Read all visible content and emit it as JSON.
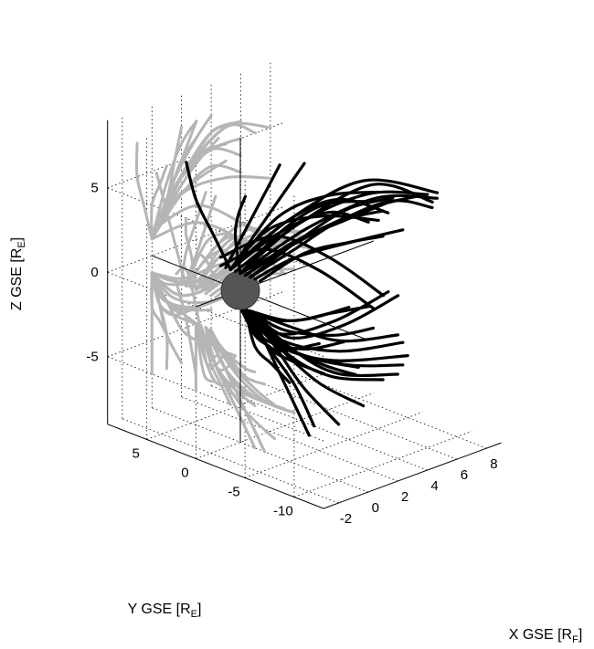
{
  "chart_data": {
    "type": "line3d",
    "title": "",
    "xlabel": "X GSE [R_F]",
    "ylabel": "Y GSE [R_E]",
    "zlabel": "Z GSE [R_E]",
    "xlabel_main": "X GSE [R",
    "xlabel_sub": "F",
    "ylabel_main": "Y GSE [R",
    "ylabel_sub": "E",
    "zlabel_main": "Z GSE [R",
    "zlabel_sub": "E",
    "bracket_close": "]",
    "xlim": [
      -3,
      9
    ],
    "ylim": [
      -13,
      9
    ],
    "zlim": [
      -9,
      9
    ],
    "x_ticks": [
      "-2",
      "0",
      "2",
      "4",
      "6",
      "8"
    ],
    "y_ticks": [
      "5",
      "0",
      "-5",
      "-10"
    ],
    "z_ticks": [
      "5",
      "0",
      "-5"
    ],
    "grid": true,
    "earth": {
      "x": 0,
      "y": 0,
      "z": 0,
      "radius": 1,
      "color": "#555555"
    },
    "line_color": "#000000",
    "projection_color": "#b5b5b5",
    "series": [
      {
        "group": "north-cusp",
        "points": [
          [
            0,
            -1,
            1
          ],
          [
            1,
            -4,
            3
          ],
          [
            2,
            -7,
            5
          ],
          [
            3,
            -10,
            6
          ]
        ]
      },
      {
        "group": "north-cusp",
        "points": [
          [
            0,
            -1,
            1
          ],
          [
            1,
            -5,
            4
          ],
          [
            2,
            -8,
            6
          ],
          [
            3,
            -11,
            7
          ]
        ]
      },
      {
        "group": "north-cusp",
        "points": [
          [
            0,
            -0.5,
            1
          ],
          [
            1.5,
            -5,
            4
          ],
          [
            3,
            -9,
            6
          ],
          [
            4,
            -12,
            7
          ]
        ]
      },
      {
        "group": "north-cusp",
        "points": [
          [
            0,
            0,
            1
          ],
          [
            2,
            -5,
            4
          ],
          [
            4,
            -9,
            6
          ],
          [
            5,
            -12,
            6
          ]
        ]
      },
      {
        "group": "north-cusp",
        "points": [
          [
            0,
            0,
            1
          ],
          [
            2,
            -4,
            4
          ],
          [
            4,
            -8,
            6
          ],
          [
            6,
            -11,
            6
          ]
        ]
      },
      {
        "group": "north-cusp",
        "points": [
          [
            0,
            0,
            1
          ],
          [
            2,
            -3,
            4
          ],
          [
            4,
            -7,
            6
          ],
          [
            6,
            -10,
            6
          ]
        ]
      },
      {
        "group": "north-cusp",
        "points": [
          [
            0,
            0.5,
            1
          ],
          [
            2,
            -3,
            4
          ],
          [
            5,
            -6,
            6
          ],
          [
            7,
            -9,
            5
          ]
        ]
      },
      {
        "group": "north-cusp",
        "points": [
          [
            0,
            1,
            1
          ],
          [
            2,
            -2,
            4
          ],
          [
            5,
            -5,
            6
          ],
          [
            8,
            -8,
            5
          ]
        ]
      },
      {
        "group": "north-cusp",
        "points": [
          [
            0,
            1,
            1
          ],
          [
            2,
            -2,
            4
          ],
          [
            4,
            -4,
            5
          ],
          [
            6,
            -6,
            4
          ]
        ]
      },
      {
        "group": "north-cusp",
        "points": [
          [
            0,
            1,
            1
          ],
          [
            2,
            -1,
            4
          ],
          [
            4,
            -3,
            5
          ],
          [
            6,
            -5,
            5
          ]
        ]
      },
      {
        "group": "north-cusp",
        "points": [
          [
            0,
            0,
            1
          ],
          [
            1.5,
            -2,
            3.5
          ],
          [
            3,
            -4,
            5
          ],
          [
            5,
            -6,
            5
          ]
        ]
      },
      {
        "group": "north-cusp",
        "points": [
          [
            0,
            1,
            1
          ],
          [
            2,
            -1,
            3
          ],
          [
            4,
            -3,
            4
          ],
          [
            6,
            -4,
            3
          ]
        ]
      },
      {
        "group": "north-cusp",
        "points": [
          [
            0,
            1,
            1
          ],
          [
            2,
            0,
            3
          ],
          [
            5,
            -1,
            3
          ],
          [
            8,
            -2,
            2
          ]
        ]
      },
      {
        "group": "north-cusp",
        "points": [
          [
            0,
            1,
            1
          ],
          [
            1,
            0,
            3
          ],
          [
            2,
            -1,
            5
          ],
          [
            3,
            -2,
            7
          ]
        ]
      },
      {
        "group": "north-cusp",
        "points": [
          [
            0,
            1.5,
            1
          ],
          [
            1,
            1,
            3
          ],
          [
            1.5,
            0,
            5
          ],
          [
            2,
            -1,
            7
          ]
        ]
      },
      {
        "group": "north-cusp",
        "points": [
          [
            0,
            2,
            1.5
          ],
          [
            3,
            1,
            2
          ],
          [
            6,
            0,
            0
          ],
          [
            9,
            -1,
            -3
          ]
        ]
      },
      {
        "group": "north-cusp",
        "points": [
          [
            0,
            2,
            1
          ],
          [
            3,
            2,
            1
          ],
          [
            6,
            1,
            -1
          ],
          [
            9,
            0,
            -4
          ]
        ]
      },
      {
        "group": "north-cusp",
        "points": [
          [
            0,
            1,
            1
          ],
          [
            -0.5,
            2,
            3
          ],
          [
            -1,
            3,
            5
          ],
          [
            -1,
            4,
            7
          ]
        ]
      },
      {
        "group": "north-cusp",
        "points": [
          [
            0,
            0,
            1
          ],
          [
            0,
            0.5,
            3
          ],
          [
            0.5,
            1,
            4
          ],
          [
            1,
            1,
            5
          ]
        ]
      },
      {
        "group": "north-cusp",
        "points": [
          [
            0,
            -2,
            1
          ],
          [
            1,
            -5,
            3
          ],
          [
            2,
            -8,
            4
          ],
          [
            3,
            -10,
            4.5
          ]
        ]
      },
      {
        "group": "north-cusp",
        "points": [
          [
            0,
            -1.5,
            1
          ],
          [
            1,
            -4,
            2.5
          ],
          [
            3,
            -7,
            3.5
          ],
          [
            5,
            -9,
            4
          ]
        ]
      },
      {
        "group": "north-cusp",
        "points": [
          [
            0,
            -0.5,
            1
          ],
          [
            1.5,
            -3,
            3
          ],
          [
            3,
            -6,
            4.5
          ],
          [
            4.5,
            -8,
            5.5
          ]
        ]
      },
      {
        "group": "south-cusp",
        "points": [
          [
            0,
            -1,
            -1
          ],
          [
            0,
            -3,
            -3
          ],
          [
            0,
            -5,
            -5
          ],
          [
            0,
            -7,
            -7
          ]
        ]
      },
      {
        "group": "south-cusp",
        "points": [
          [
            0,
            -1,
            -1
          ],
          [
            0.5,
            -3,
            -3
          ],
          [
            1,
            -5,
            -5
          ],
          [
            2,
            -7,
            -7
          ]
        ]
      },
      {
        "group": "south-cusp",
        "points": [
          [
            0,
            -1,
            -1
          ],
          [
            0.5,
            -4,
            -3
          ],
          [
            1.5,
            -7,
            -4
          ],
          [
            3,
            -10,
            -4
          ]
        ]
      },
      {
        "group": "south-cusp",
        "points": [
          [
            0,
            -1,
            -1
          ],
          [
            1,
            -4,
            -3
          ],
          [
            2,
            -7,
            -4
          ],
          [
            4,
            -10,
            -4
          ]
        ]
      },
      {
        "group": "south-cusp",
        "points": [
          [
            0,
            -1,
            -1
          ],
          [
            1,
            -3,
            -3
          ],
          [
            3,
            -6,
            -4
          ],
          [
            5,
            -9,
            -4
          ]
        ]
      },
      {
        "group": "south-cusp",
        "points": [
          [
            0,
            -1,
            -1
          ],
          [
            1,
            -3,
            -3
          ],
          [
            3,
            -5,
            -4
          ],
          [
            6,
            -8,
            -4
          ]
        ]
      },
      {
        "group": "south-cusp",
        "points": [
          [
            0,
            -1,
            -1
          ],
          [
            1.5,
            -2,
            -3
          ],
          [
            4,
            -4,
            -4
          ],
          [
            7,
            -6,
            -4
          ]
        ]
      },
      {
        "group": "south-cusp",
        "points": [
          [
            0,
            -0.5,
            -1
          ],
          [
            1,
            -2,
            -3
          ],
          [
            2,
            -5,
            -5
          ],
          [
            3,
            -8,
            -6
          ]
        ]
      },
      {
        "group": "south-cusp",
        "points": [
          [
            0,
            -0.5,
            -1
          ],
          [
            0.5,
            -2,
            -3
          ],
          [
            1,
            -4,
            -5
          ],
          [
            1,
            -6,
            -7
          ]
        ]
      },
      {
        "group": "south-cusp",
        "points": [
          [
            0,
            -1,
            -1
          ],
          [
            2,
            -2,
            -3
          ],
          [
            5,
            -3,
            -3
          ],
          [
            8,
            -4,
            -2
          ]
        ]
      },
      {
        "group": "south-cusp",
        "points": [
          [
            0,
            0,
            -1
          ],
          [
            2,
            -1,
            -3
          ],
          [
            5,
            -2,
            -3
          ],
          [
            8,
            -3,
            -2
          ]
        ]
      },
      {
        "group": "south-cusp",
        "points": [
          [
            0,
            0,
            -1
          ],
          [
            1,
            -1,
            -3
          ],
          [
            3,
            -2,
            -4
          ],
          [
            5,
            -3,
            -4
          ]
        ]
      },
      {
        "group": "south-cusp",
        "points": [
          [
            0,
            0,
            -1
          ],
          [
            1,
            -0.5,
            -3
          ],
          [
            2,
            -1,
            -4
          ],
          [
            4,
            -2,
            -4
          ]
        ]
      },
      {
        "group": "south-cusp",
        "points": [
          [
            0,
            -1,
            -1
          ],
          [
            0.5,
            -2,
            -3
          ],
          [
            1.5,
            -3,
            -4
          ],
          [
            3,
            -4,
            -5
          ]
        ]
      },
      {
        "group": "south-cusp",
        "points": [
          [
            0,
            -0.5,
            -1
          ],
          [
            0,
            -1.5,
            -3
          ],
          [
            0.5,
            -2.5,
            -4
          ],
          [
            1,
            -3.5,
            -5
          ]
        ]
      },
      {
        "group": "south-cusp",
        "points": [
          [
            0,
            -1,
            -1
          ],
          [
            1,
            -3,
            -2
          ],
          [
            3,
            -5,
            -2.5
          ],
          [
            5,
            -6,
            -2.5
          ]
        ]
      },
      {
        "group": "south-cusp",
        "points": [
          [
            0,
            -1,
            -1
          ],
          [
            2,
            -2,
            -2
          ],
          [
            4,
            -3,
            -2
          ],
          [
            6,
            -4,
            -2
          ]
        ]
      },
      {
        "group": "south-cusp",
        "points": [
          [
            0,
            0,
            -1
          ],
          [
            1,
            0,
            -3
          ],
          [
            2,
            0,
            -4
          ],
          [
            3,
            0,
            -5
          ]
        ]
      },
      {
        "group": "south-cusp",
        "points": [
          [
            0,
            -0.5,
            -1
          ],
          [
            1,
            -2,
            -3
          ],
          [
            2.5,
            -4,
            -4
          ],
          [
            4,
            -6,
            -4.5
          ]
        ]
      },
      {
        "group": "south-cusp",
        "points": [
          [
            0,
            -1.5,
            -1
          ],
          [
            0.5,
            -3.5,
            -2.5
          ],
          [
            1.5,
            -6,
            -3.5
          ],
          [
            2.5,
            -8,
            -4
          ]
        ]
      },
      {
        "group": "south-cusp",
        "points": [
          [
            0,
            -1,
            -1
          ],
          [
            1.5,
            -3,
            -2
          ],
          [
            3.5,
            -5,
            -3
          ],
          [
            6,
            -7,
            -3
          ]
        ]
      },
      {
        "group": "south-cusp",
        "points": [
          [
            0,
            0,
            -1
          ],
          [
            1.5,
            -1,
            -2
          ],
          [
            3.5,
            -1.5,
            -2.5
          ],
          [
            6,
            -2,
            -2.5
          ]
        ]
      }
    ]
  }
}
